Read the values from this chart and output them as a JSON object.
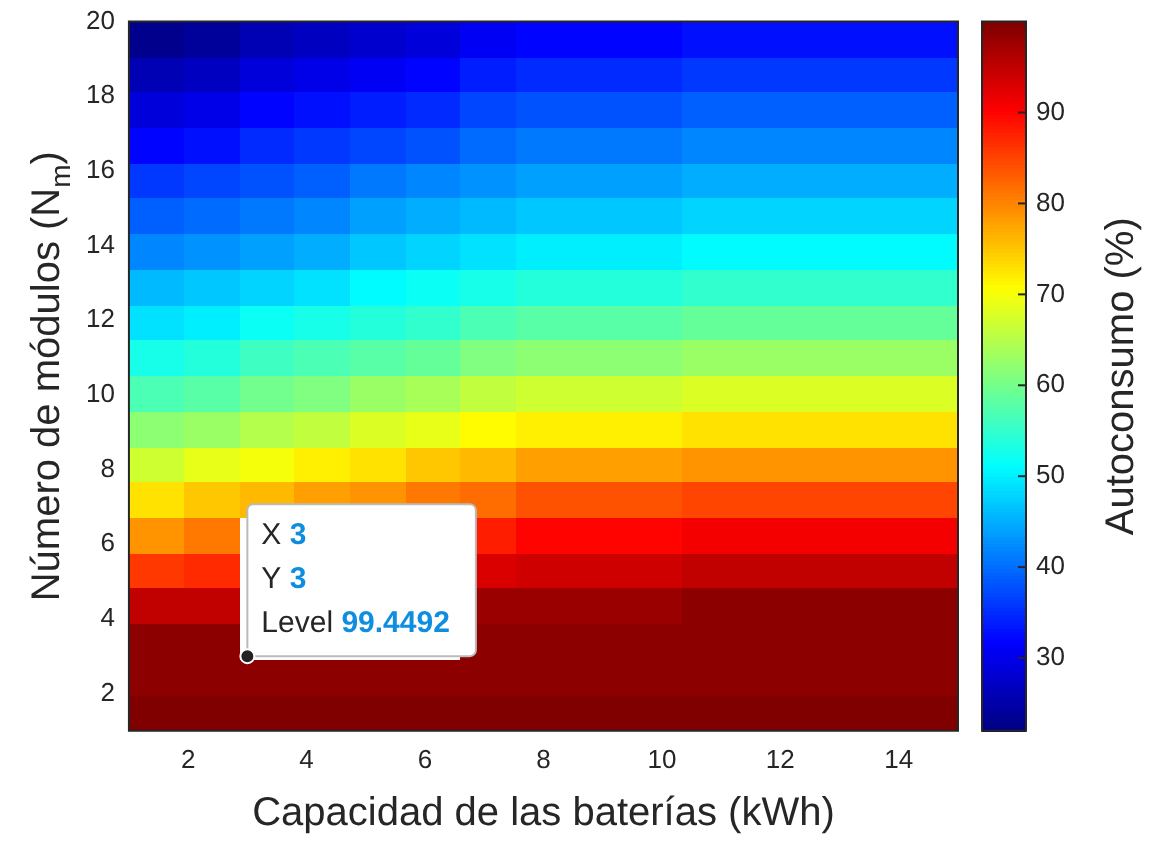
{
  "chart_data": {
    "type": "heatmap",
    "xlabel": "Capacidad de las baterías (kWh)",
    "ylabel": "Número de módulos (N$_{m}$)",
    "clabel": "Autoconsumo (%)",
    "xlim": [
      1,
      15
    ],
    "xticks": [
      2,
      4,
      6,
      8,
      10,
      12,
      14
    ],
    "ylim": [
      1,
      20
    ],
    "yticks": [
      2,
      4,
      6,
      8,
      10,
      12,
      14,
      16,
      18,
      20
    ],
    "clim": [
      22,
      100
    ],
    "cticks": [
      30,
      40,
      50,
      60,
      70,
      80,
      90
    ],
    "cells": [
      [
        23,
        24,
        26,
        27,
        28,
        29,
        31,
        32,
        32,
        32,
        33,
        33,
        33,
        33,
        33
      ],
      [
        26,
        27,
        29,
        30,
        31,
        32,
        34,
        35,
        35,
        35,
        36,
        36,
        36,
        36,
        36
      ],
      [
        29,
        30,
        32,
        33,
        34,
        35,
        37,
        38,
        38,
        38,
        39,
        39,
        39,
        39,
        39
      ],
      [
        32,
        33,
        35,
        36,
        37,
        38,
        40,
        41,
        41,
        41,
        42,
        42,
        42,
        42,
        42
      ],
      [
        36,
        37,
        38,
        39,
        41,
        42,
        43,
        44,
        44,
        44,
        45,
        45,
        45,
        45,
        45
      ],
      [
        39,
        40,
        41,
        42,
        44,
        45,
        46,
        47,
        47,
        47,
        48,
        48,
        48,
        48,
        48
      ],
      [
        42,
        43,
        44,
        45,
        47,
        48,
        49,
        50,
        50,
        50,
        51,
        51,
        51,
        51,
        51
      ],
      [
        46,
        47,
        48,
        49,
        51,
        52,
        53,
        54,
        54,
        54,
        55,
        55,
        55,
        55,
        55
      ],
      [
        49,
        50,
        52,
        53,
        54,
        55,
        57,
        58,
        58,
        58,
        59,
        59,
        59,
        59,
        59
      ],
      [
        53,
        54,
        56,
        57,
        58,
        59,
        61,
        62,
        62,
        62,
        63,
        63,
        63,
        63,
        63
      ],
      [
        57,
        58,
        60,
        61,
        63,
        64,
        66,
        67,
        67,
        67,
        68,
        68,
        68,
        68,
        68
      ],
      [
        62,
        63,
        65,
        66,
        68,
        69,
        71,
        72,
        72,
        72,
        73,
        73,
        73,
        73,
        73
      ],
      [
        67,
        69,
        70,
        72,
        73,
        75,
        76,
        78,
        78,
        78,
        79,
        79,
        79,
        79,
        79
      ],
      [
        73,
        75,
        76,
        78,
        79,
        81,
        82,
        84,
        84,
        84,
        85,
        85,
        85,
        85,
        85
      ],
      [
        79,
        81,
        null,
        null,
        null,
        null,
        88,
        90,
        90,
        90,
        91,
        91,
        91,
        91,
        91
      ],
      [
        86,
        87,
        null,
        null,
        null,
        null,
        93,
        94,
        94,
        94,
        95,
        95,
        95,
        95,
        95
      ],
      [
        95,
        95,
        null,
        null,
        null,
        null,
        98,
        98,
        98,
        98,
        99,
        99,
        99,
        99,
        99
      ],
      [
        99,
        99,
        null,
        null,
        null,
        null,
        99,
        99,
        99,
        99,
        99,
        99,
        99,
        99,
        99
      ],
      [
        99,
        99,
        99,
        99,
        99,
        99,
        99,
        99,
        99,
        99,
        99,
        99,
        99,
        99,
        99
      ],
      [
        100,
        100,
        100,
        100,
        100,
        100,
        100,
        100,
        100,
        100,
        100,
        100,
        100,
        100,
        100
      ]
    ],
    "annotations": [
      {
        "text": "X 3\nY 3\nLevel 99.4492",
        "x": 3,
        "y": 3
      }
    ]
  }
}
